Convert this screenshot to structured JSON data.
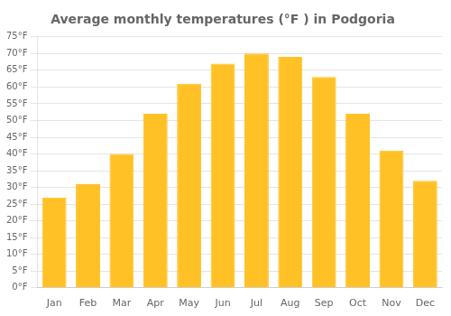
{
  "chart_data": {
    "type": "bar",
    "title": "Average monthly temperatures (°F ) in Podgoria",
    "categories": [
      "Jan",
      "Feb",
      "Mar",
      "Apr",
      "May",
      "Jun",
      "Jul",
      "Aug",
      "Sep",
      "Oct",
      "Nov",
      "Dec"
    ],
    "values": [
      27,
      31,
      40,
      52,
      61,
      67,
      70,
      69,
      63,
      52,
      41,
      32
    ],
    "color": "#FFC125",
    "ylim": [
      0,
      75
    ],
    "yticks": [
      {
        "value": 0,
        "label": "0°F"
      },
      {
        "value": 5,
        "label": "5°F"
      },
      {
        "value": 10,
        "label": "10°F"
      },
      {
        "value": 15,
        "label": "15°F"
      },
      {
        "value": 20,
        "label": "20°F"
      },
      {
        "value": 25,
        "label": "25°F"
      },
      {
        "value": 30,
        "label": "30°F"
      },
      {
        "value": 35,
        "label": "35°F"
      },
      {
        "value": 40,
        "label": "40°F"
      },
      {
        "value": 45,
        "label": "45°F"
      },
      {
        "value": 50,
        "label": "50°F"
      },
      {
        "value": 55,
        "label": "55°F"
      },
      {
        "value": 60,
        "label": "60°F"
      },
      {
        "value": 65,
        "label": "65°F"
      },
      {
        "value": 70,
        "label": "70°F"
      },
      {
        "value": 75,
        "label": "75°F"
      }
    ],
    "grid": true
  }
}
